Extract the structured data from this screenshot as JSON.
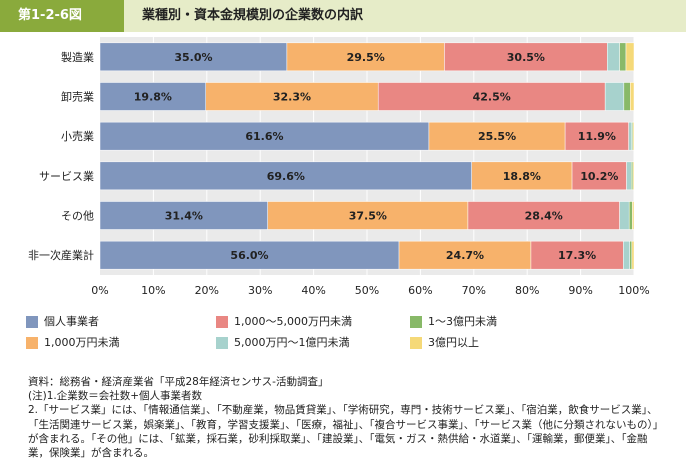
{
  "header": {
    "figure_id": "第1-2-6図",
    "title": "業種別・資本金規模別の企業数の内訳"
  },
  "chart_data": {
    "type": "bar",
    "orientation": "horizontal",
    "stacked": "percent",
    "categories": [
      "製造業",
      "卸売業",
      "小売業",
      "サービス業",
      "その他",
      "非一次産業計"
    ],
    "series": [
      {
        "name": "個人事業者",
        "color": "#8096bd",
        "values": [
          35.0,
          19.8,
          61.6,
          69.6,
          31.4,
          56.0
        ]
      },
      {
        "name": "1,000万円未満",
        "color": "#f7b26b",
        "values": [
          29.5,
          32.3,
          25.5,
          18.8,
          37.5,
          24.7
        ]
      },
      {
        "name": "1,000～5,000万円未満",
        "color": "#e98783",
        "values": [
          30.5,
          42.5,
          11.9,
          10.2,
          28.4,
          17.3
        ]
      },
      {
        "name": "5,000万円～1億円未満",
        "color": "#a7d2cd",
        "values": [
          2.3,
          3.5,
          0.6,
          0.9,
          1.8,
          1.2
        ]
      },
      {
        "name": "1～3億円未満",
        "color": "#88b968",
        "values": [
          1.2,
          1.2,
          0.2,
          0.3,
          0.6,
          0.4
        ]
      },
      {
        "name": "3億円以上",
        "color": "#f5d978",
        "values": [
          1.5,
          0.7,
          0.2,
          0.2,
          0.3,
          0.4
        ]
      }
    ],
    "data_labels": [
      [
        "35.0%",
        "29.5%",
        "30.5%"
      ],
      [
        "19.8%",
        "32.3%",
        "42.5%"
      ],
      [
        "61.6%",
        "25.5%",
        "11.9%"
      ],
      [
        "69.6%",
        "18.8%",
        "10.2%"
      ],
      [
        "31.4%",
        "37.5%",
        "28.4%"
      ],
      [
        "56.0%",
        "24.7%",
        "17.3%"
      ]
    ],
    "x_ticks": [
      "0%",
      "10%",
      "20%",
      "30%",
      "40%",
      "50%",
      "60%",
      "70%",
      "80%",
      "90%",
      "100%"
    ],
    "xlim": [
      0,
      100
    ],
    "grid": true,
    "legend_position": "bottom"
  },
  "legend": [
    {
      "label": "個人事業者",
      "color": "#8096bd"
    },
    {
      "label": "1,000～5,000万円未満",
      "color": "#e98783"
    },
    {
      "label": "1～3億円未満",
      "color": "#88b968"
    },
    {
      "label": "1,000万円未満",
      "color": "#f7b26b"
    },
    {
      "label": "5,000万円～1億円未満",
      "color": "#a7d2cd"
    },
    {
      "label": "3億円以上",
      "color": "#f5d978"
    }
  ],
  "notes": {
    "source": "資料：総務省・経済産業省「平成28年経済センサス-活動調査」",
    "note1": "(注)1.企業数＝会社数+個人事業者数",
    "note2": "2.「サービス業」には、「情報通信業」、「不動産業，物品賃貸業」、「学術研究，専門・技術サービス業」、「宿泊業，飲食サービス業」、「生活関連サービス業，娯楽業」、「教育，学習支援業」、「医療，福祉」、「複合サービス事業」、「サービス業（他に分類されないもの）」が含まれる。「その他」には、「鉱業，採石業，砂利採取業」、「建設業」、「電気・ガス・熱供給・水道業」、「運輸業，郵便業」、「金融業，保険業」が含まれる。"
  }
}
